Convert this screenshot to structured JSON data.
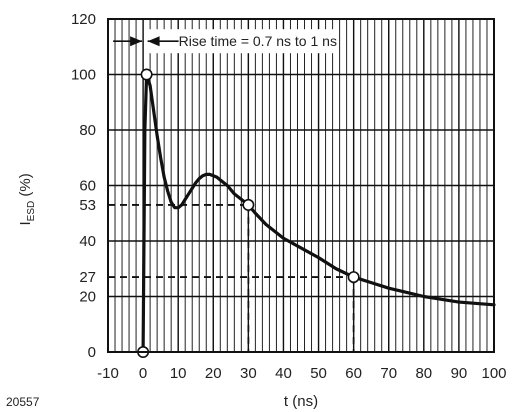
{
  "chart_data": {
    "type": "line",
    "title": "",
    "xlabel": "t (ns)",
    "ylabel_main": "I",
    "ylabel_sub": "ESD",
    "ylabel_suffix": " (%)",
    "xlim": [
      -10,
      100
    ],
    "ylim": [
      0,
      120
    ],
    "x_ticks": [
      -10,
      0,
      10,
      20,
      30,
      40,
      50,
      60,
      70,
      80,
      90,
      100
    ],
    "y_ticks": [
      0,
      20,
      27,
      40,
      53,
      60,
      80,
      100,
      120
    ],
    "x_minor_step": 2,
    "y_major_step": 20,
    "grid": true,
    "series": [
      {
        "values_x": [
          0,
          0.5,
          1,
          2,
          3,
          4,
          5,
          6,
          7,
          8,
          9,
          10,
          11,
          12,
          13,
          14,
          15,
          16,
          17,
          18,
          19,
          20,
          21,
          22,
          23,
          24,
          25,
          26,
          27,
          28,
          29,
          30,
          32,
          35,
          40,
          45,
          50,
          55,
          60,
          65,
          70,
          75,
          80,
          85,
          90,
          95,
          100
        ],
        "values_y": [
          0,
          80,
          100,
          96,
          87,
          78,
          70,
          63,
          58,
          54,
          52,
          52,
          53,
          55,
          57,
          59,
          61,
          62.5,
          63.5,
          64,
          64,
          63.5,
          63,
          62,
          61,
          60,
          58.5,
          57,
          56,
          55,
          54,
          53,
          50,
          46,
          41,
          37.5,
          34,
          30,
          27,
          25,
          23,
          21.5,
          20,
          19,
          18,
          17.5,
          17
        ]
      }
    ],
    "markers": [
      {
        "x": 0,
        "y": 0
      },
      {
        "x": 1,
        "y": 100
      },
      {
        "x": 30,
        "y": 53
      },
      {
        "x": 60,
        "y": 27
      }
    ],
    "reference_lines": [
      {
        "y": 53,
        "x_end": 30
      },
      {
        "y": 27,
        "x_end": 60
      }
    ],
    "annotation": {
      "text": "Rise time = 0.7 ns to 1 ns",
      "x_from": 0,
      "x_to": 1,
      "y": 112
    },
    "figure_id": "20557"
  }
}
